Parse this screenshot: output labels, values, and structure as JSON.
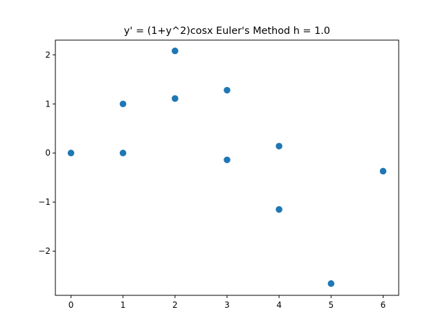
{
  "chart_data": {
    "type": "scatter",
    "title": "y' = (1+y^2)cosx Euler's Method h = 1.0",
    "xlabel": "",
    "ylabel": "",
    "xlim": [
      -0.3,
      6.3
    ],
    "ylim": [
      -2.9,
      2.3
    ],
    "xticks": [
      0,
      1,
      2,
      3,
      4,
      5,
      6
    ],
    "xtick_labels": [
      "0",
      "1",
      "2",
      "3",
      "4",
      "5",
      "6"
    ],
    "yticks": [
      -2,
      -1,
      0,
      1,
      2
    ],
    "ytick_labels": [
      "−2",
      "−1",
      "0",
      "1",
      "2"
    ],
    "grid": false,
    "marker_color": "#1f77b4",
    "points": [
      {
        "x": 0,
        "y": 0
      },
      {
        "x": 1,
        "y": 1.0
      },
      {
        "x": 1,
        "y": 0
      },
      {
        "x": 2,
        "y": 2.08
      },
      {
        "x": 2,
        "y": 1.11
      },
      {
        "x": 3,
        "y": 1.28
      },
      {
        "x": 3,
        "y": -0.14
      },
      {
        "x": 4,
        "y": 0.14
      },
      {
        "x": 4,
        "y": -1.15
      },
      {
        "x": 5,
        "y": -2.66
      },
      {
        "x": 6,
        "y": -0.37
      }
    ]
  }
}
